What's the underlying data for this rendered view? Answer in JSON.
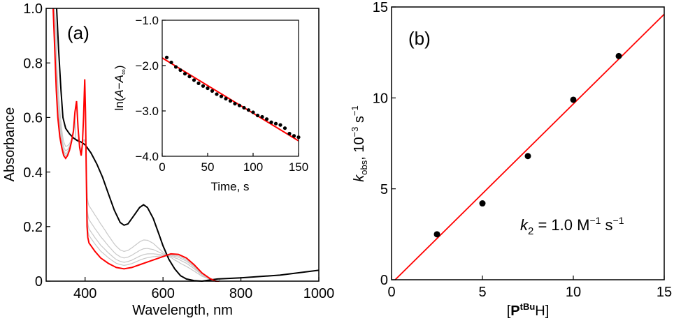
{
  "chart_data": [
    {
      "type": "line",
      "panel_label": "(a)",
      "xlabel": "Wavelength, nm",
      "ylabel": "Absorbance",
      "xlim": [
        300,
        1000
      ],
      "ylim": [
        0,
        1.0
      ],
      "xticks": [
        400,
        600,
        800,
        1000
      ],
      "xtick_labels": [
        "400",
        "600",
        "800",
        "1000"
      ],
      "yticks": [
        0,
        0.2,
        0.4,
        0.6,
        0.8,
        1.0
      ],
      "ytick_labels": [
        "0",
        "0.2",
        "0.4",
        "0.6",
        "0.8",
        "1.0"
      ],
      "grid": false,
      "series": [
        {
          "name": "initial",
          "color": "#000000",
          "x": [
            327,
            332,
            338,
            343,
            350,
            360,
            370,
            380,
            390,
            400,
            415,
            430,
            445,
            460,
            475,
            490,
            500,
            510,
            525,
            540,
            550,
            560,
            575,
            590,
            600,
            615,
            630,
            645,
            660,
            680,
            700,
            720,
            740,
            800,
            900,
            1000
          ],
          "y": [
            1.0,
            0.85,
            0.7,
            0.6,
            0.56,
            0.54,
            0.525,
            0.515,
            0.51,
            0.5,
            0.47,
            0.43,
            0.38,
            0.32,
            0.26,
            0.215,
            0.205,
            0.21,
            0.24,
            0.27,
            0.28,
            0.27,
            0.23,
            0.17,
            0.13,
            0.08,
            0.045,
            0.02,
            0.008,
            0.002,
            0.0,
            0.004,
            0.008,
            0.012,
            0.022,
            0.04
          ]
        },
        {
          "name": "final",
          "color": "#ff0000",
          "x": [
            318,
            322,
            326,
            330,
            335,
            340,
            345,
            350,
            355,
            360,
            365,
            370,
            374,
            378,
            382,
            386,
            390,
            393,
            396,
            399,
            401,
            403,
            405,
            407,
            410,
            415,
            425,
            440,
            460,
            480,
            500,
            520,
            540,
            560,
            580,
            600,
            620,
            640,
            660,
            680,
            700,
            720,
            735,
            745
          ],
          "y": [
            1.0,
            0.85,
            0.7,
            0.6,
            0.53,
            0.49,
            0.46,
            0.45,
            0.46,
            0.48,
            0.51,
            0.55,
            0.62,
            0.66,
            0.56,
            0.49,
            0.46,
            0.5,
            0.6,
            0.74,
            0.62,
            0.4,
            0.2,
            0.16,
            0.14,
            0.13,
            0.11,
            0.085,
            0.065,
            0.05,
            0.045,
            0.05,
            0.06,
            0.07,
            0.08,
            0.09,
            0.1,
            0.098,
            0.085,
            0.06,
            0.03,
            0.01,
            0.0,
            -0.005
          ]
        },
        {
          "name": "intermediate",
          "color": "#c8c8c8",
          "mix_toward_final": [
            0.6,
            0.75,
            0.85,
            0.92
          ]
        }
      ],
      "inset": {
        "type": "scatter",
        "xlabel": "Time, s",
        "ylabel": "ln(A−A∞)",
        "xlim": [
          0,
          150
        ],
        "ylim": [
          -4.0,
          -1.0
        ],
        "xticks": [
          0,
          50,
          100,
          150
        ],
        "xtick_labels": [
          "0",
          "50",
          "100",
          "150"
        ],
        "yticks": [
          -1.0,
          -2.0,
          -3.0,
          -4.0
        ],
        "ytick_labels": [
          "−1.0",
          "−2.0",
          "−3.0",
          "−4.0"
        ],
        "points": {
          "color": "#000000",
          "x": [
            5,
            10,
            15,
            20,
            25,
            30,
            35,
            40,
            45,
            50,
            55,
            60,
            65,
            70,
            75,
            80,
            85,
            90,
            95,
            100,
            105,
            110,
            115,
            120,
            125,
            130,
            135,
            140,
            145,
            150
          ],
          "y": [
            -1.82,
            -1.93,
            -2.03,
            -2.1,
            -2.18,
            -2.24,
            -2.32,
            -2.39,
            -2.45,
            -2.5,
            -2.56,
            -2.63,
            -2.68,
            -2.73,
            -2.78,
            -2.84,
            -2.88,
            -2.93,
            -2.98,
            -3.03,
            -3.1,
            -3.13,
            -3.18,
            -3.25,
            -3.28,
            -3.31,
            -3.38,
            -3.5,
            -3.55,
            -3.58
          ]
        },
        "fit": {
          "color": "#ff0000",
          "x": [
            0,
            150
          ],
          "y": [
            -1.83,
            -3.66
          ]
        }
      }
    },
    {
      "type": "scatter",
      "panel_label": "(b)",
      "xlabel": "[PtBuH]",
      "xlabel_parts": {
        "open": "[",
        "main": "P",
        "sup": "tBu",
        "tail": "H]"
      },
      "ylabel_parts": {
        "k": "k",
        "sub": "obs",
        "rest": ", 10",
        "sup": "−3",
        "unit": " s",
        "unit_sup": "−1"
      },
      "xlim": [
        0,
        15
      ],
      "ylim": [
        0,
        15
      ],
      "xticks": [
        0,
        5,
        10,
        15
      ],
      "xtick_labels": [
        "0",
        "5",
        "10",
        "15"
      ],
      "yticks": [
        0,
        5,
        10,
        15
      ],
      "ytick_labels": [
        "0",
        "5",
        "10",
        "15"
      ],
      "points": {
        "color": "#000000",
        "x": [
          2.5,
          5,
          7.5,
          10,
          12.5
        ],
        "y": [
          2.5,
          4.2,
          6.8,
          9.9,
          12.3
        ]
      },
      "fit": {
        "color": "#ff0000",
        "x": [
          0.2,
          15
        ],
        "y": [
          0,
          14.6
        ]
      },
      "annotation": {
        "k": "k",
        "sub": "2",
        "eq": " = 1.0 M",
        "sup1": "−1",
        "s": " s",
        "sup2": "−1"
      }
    }
  ]
}
